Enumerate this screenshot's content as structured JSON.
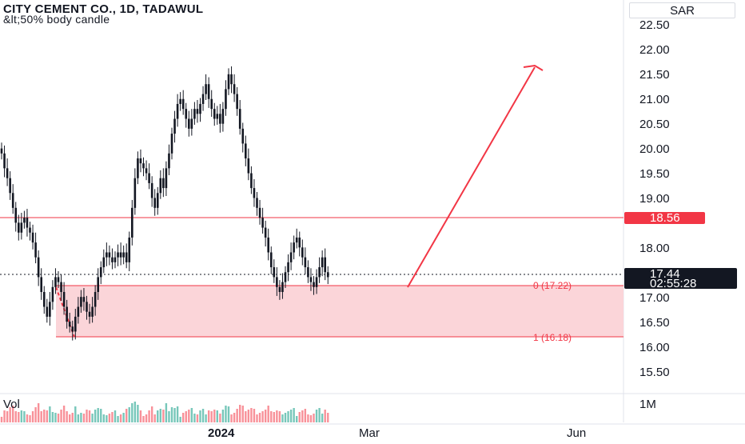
{
  "header": {
    "title": "CITY CEMENT CO., 1D, TADAWUL",
    "subtitle": "&lt;50% body candle",
    "currency": "SAR"
  },
  "price_axis": {
    "ticks": [
      "22.50",
      "22.00",
      "21.50",
      "21.00",
      "20.50",
      "20.00",
      "19.50",
      "19.00",
      "18.00",
      "17.00",
      "16.50",
      "16.00",
      "15.50"
    ]
  },
  "resistance": {
    "label": "18.56",
    "color": "#f23645"
  },
  "last_price": {
    "label": "17.44",
    "countdown": "02:55:28"
  },
  "fib": {
    "level_0_label": "0 (17.22)",
    "level_1_label": "1 (16.18)",
    "zone_color": "#fbd5d9",
    "line_color": "#f23645"
  },
  "volume": {
    "label": "Vol",
    "axis_label": "1M"
  },
  "time_axis": {
    "labels": [
      "2024",
      "Mar",
      "Jun"
    ]
  },
  "chart_data": {
    "type": "candlestick",
    "y_range": [
      15.2,
      22.8
    ],
    "closes": [
      19.9,
      19.6,
      19.4,
      19.1,
      18.8,
      18.5,
      18.3,
      18.5,
      18.6,
      18.4,
      18.3,
      18.1,
      17.8,
      17.4,
      17.1,
      16.8,
      16.6,
      16.9,
      17.2,
      17.4,
      17.3,
      17.1,
      16.8,
      16.5,
      16.4,
      16.3,
      16.6,
      16.8,
      17.0,
      16.9,
      16.7,
      16.6,
      16.8,
      17.1,
      17.4,
      17.6,
      17.8,
      17.9,
      17.8,
      17.7,
      17.8,
      17.9,
      17.8,
      17.9,
      17.7,
      18.2,
      18.8,
      19.4,
      19.8,
      19.7,
      19.6,
      19.5,
      19.3,
      19.0,
      18.8,
      19.1,
      19.4,
      19.2,
      19.6,
      19.9,
      20.3,
      20.6,
      20.9,
      21.0,
      20.8,
      20.6,
      20.4,
      20.6,
      20.8,
      20.7,
      20.9,
      21.1,
      21.3,
      21.0,
      20.8,
      20.6,
      20.7,
      20.5,
      20.8,
      21.2,
      21.5,
      21.3,
      21.1,
      20.8,
      20.4,
      20.1,
      19.8,
      19.5,
      19.2,
      19.0,
      18.8,
      18.6,
      18.4,
      18.2,
      17.9,
      17.6,
      17.4,
      17.2,
      17.1,
      17.3,
      17.5,
      17.7,
      17.9,
      18.1,
      18.2,
      18.0,
      17.8,
      17.6,
      17.4,
      17.3,
      17.2,
      17.4,
      17.6,
      17.8,
      17.5,
      17.4
    ],
    "volume_max_label": "1M"
  }
}
